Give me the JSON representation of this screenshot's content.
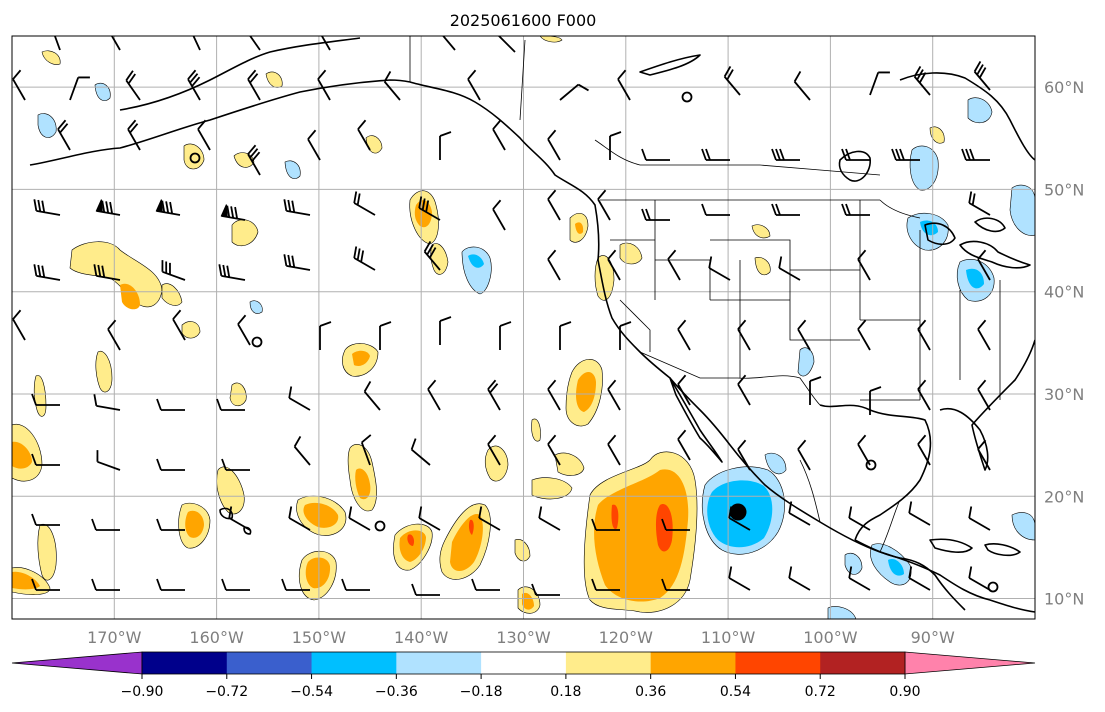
{
  "title": "2025061600 F000",
  "map": {
    "lon_range": [
      -180,
      -80
    ],
    "lat_range": [
      8,
      65
    ],
    "x_ticks": [
      {
        "lon": -170,
        "label": "170°W"
      },
      {
        "lon": -160,
        "label": "160°W"
      },
      {
        "lon": -150,
        "label": "150°W"
      },
      {
        "lon": -140,
        "label": "140°W"
      },
      {
        "lon": -130,
        "label": "130°W"
      },
      {
        "lon": -120,
        "label": "120°W"
      },
      {
        "lon": -110,
        "label": "110°W"
      },
      {
        "lon": -100,
        "label": "100°W"
      },
      {
        "lon": -90,
        "label": "90°W"
      }
    ],
    "y_ticks": [
      {
        "lat": 60,
        "label": "60°N"
      },
      {
        "lat": 50,
        "label": "50°N"
      },
      {
        "lat": 40,
        "label": "40°N"
      },
      {
        "lat": 30,
        "label": "30°N"
      },
      {
        "lat": 20,
        "label": "20°N"
      },
      {
        "lat": 10,
        "label": "10°N"
      }
    ],
    "grid": true
  },
  "colorbar": {
    "colors": [
      "#9932cc",
      "#00008b",
      "#3a5fcd",
      "#00bfff",
      "#b0e2ff",
      "#ffffff",
      "#ffec8b",
      "#ffa500",
      "#ff4500",
      "#b22222",
      "#ff82ab"
    ],
    "levels": [
      -0.9,
      -0.72,
      -0.54,
      -0.36,
      -0.18,
      0.18,
      0.36,
      0.54,
      0.72,
      0.9
    ],
    "labels": [
      "−0.90",
      "−0.72",
      "−0.54",
      "−0.36",
      "−0.18",
      "0.18",
      "0.36",
      "0.54",
      "0.72",
      "0.90"
    ],
    "extend": "both"
  },
  "chart_data": {
    "type": "heatmap",
    "title": "2025061600 F000",
    "x_range_lon": [
      -180,
      -80
    ],
    "y_range_lat": [
      8,
      65
    ],
    "field_levels": [
      -0.9,
      -0.72,
      -0.54,
      -0.36,
      -0.18,
      0.18,
      0.36,
      0.54,
      0.72,
      0.9
    ],
    "overlays": [
      "filled contours",
      "wind barbs",
      "coastlines",
      "state/country borders",
      "circle markers"
    ],
    "positive_cells": [
      {
        "lon": -118,
        "lat": 17,
        "max": 0.72
      },
      {
        "lon": -114,
        "lat": 17,
        "max": 0.72
      },
      {
        "lon": -136,
        "lat": 17,
        "max": 0.72
      },
      {
        "lon": -148,
        "lat": 17,
        "max": 0.54
      },
      {
        "lon": -124,
        "lat": 31,
        "max": 0.54
      },
      {
        "lon": -139,
        "lat": 46,
        "max": 0.54
      },
      {
        "lon": -169,
        "lat": 41,
        "max": 0.54
      },
      {
        "lon": -177,
        "lat": 10,
        "max": 0.54
      },
      {
        "lon": -143,
        "lat": 18,
        "max": 0.72
      }
    ],
    "negative_cells": [
      {
        "lon": -109,
        "lat": 19,
        "min": -0.54
      },
      {
        "lon": -85,
        "lat": 42,
        "min": -0.36
      },
      {
        "lon": -86,
        "lat": 46,
        "min": -0.36
      },
      {
        "lon": -134,
        "lat": 43,
        "min": -0.36
      },
      {
        "lon": -83,
        "lat": 13,
        "min": -0.36
      }
    ]
  }
}
